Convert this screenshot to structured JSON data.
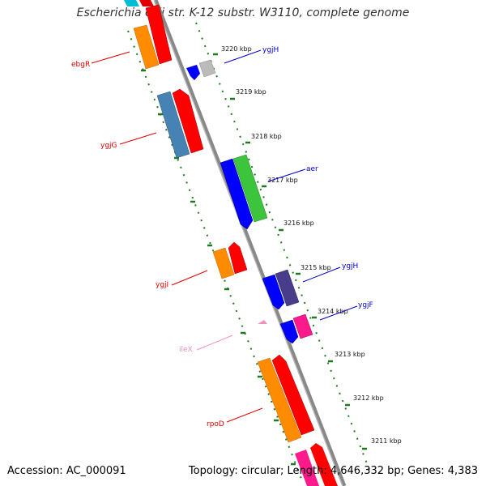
{
  "header": {
    "title": "Escherichia coli str. K-12 substr. W3110, complete genome"
  },
  "footer": {
    "accession": "Accession: AC_000091",
    "summary": "Topology: circular; Length: 4,646,332 bp; Genes: 4,383"
  },
  "colors": {
    "backbone": "#888888",
    "tick": "#1f7a1f",
    "label_red": "#e00000",
    "label_blue": "#0000cc",
    "label_pink": "#f090c0"
  },
  "ruler": {
    "labels": [
      "3220 kbp",
      "3219 kbp",
      "3218 kbp",
      "3217 kbp",
      "3216 kbp",
      "3215 kbp",
      "3214 kbp",
      "3213 kbp",
      "3212 kbp",
      "3211 kbp"
    ]
  },
  "genes": {
    "ebgR": "ebgR",
    "ygjG": "ygjG",
    "ygjI": "ygjI",
    "ileX": "ileX",
    "rpoD": "rpoD",
    "ygjH_top": "ygjH",
    "aer": "aer",
    "ygjH": "ygjH",
    "ygjF": "ygjF"
  }
}
